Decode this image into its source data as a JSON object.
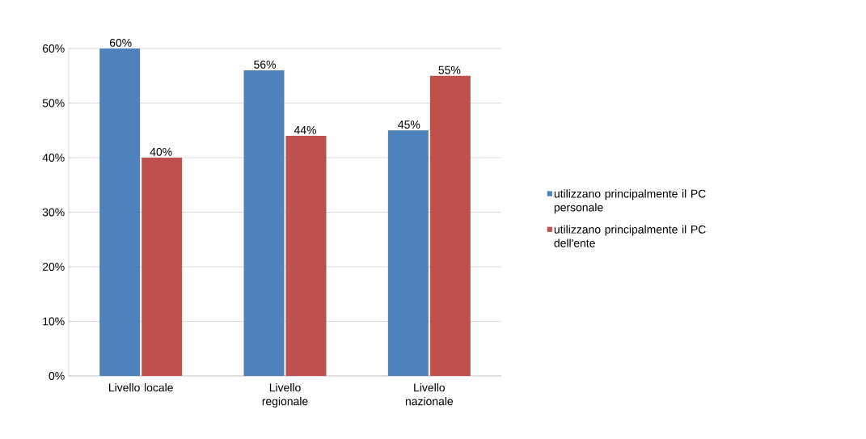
{
  "chart_data": {
    "type": "bar",
    "categories": [
      "Livello locale",
      "Livello regionale",
      "Livello nazionale"
    ],
    "series": [
      {
        "name": "utilizzano principalmente  il PC personale",
        "color": "#4f81bd",
        "values": [
          60,
          56,
          45
        ],
        "value_labels": [
          "60%",
          "56%",
          "45%"
        ]
      },
      {
        "name": "utilizzano principalmente  il PC dell'ente",
        "color": "#c0504d",
        "values": [
          40,
          44,
          55
        ],
        "value_labels": [
          "40%",
          "44%",
          "55%"
        ]
      }
    ],
    "ylim": [
      0,
      60
    ],
    "yticks": [
      {
        "value": 0,
        "label": "0%"
      },
      {
        "value": 10,
        "label": "10%"
      },
      {
        "value": 20,
        "label": "20%"
      },
      {
        "value": 30,
        "label": "30%"
      },
      {
        "value": 40,
        "label": "40%"
      },
      {
        "value": 50,
        "label": "50%"
      },
      {
        "value": 60,
        "label": "60%"
      }
    ],
    "grid": "y",
    "legend": "right"
  }
}
